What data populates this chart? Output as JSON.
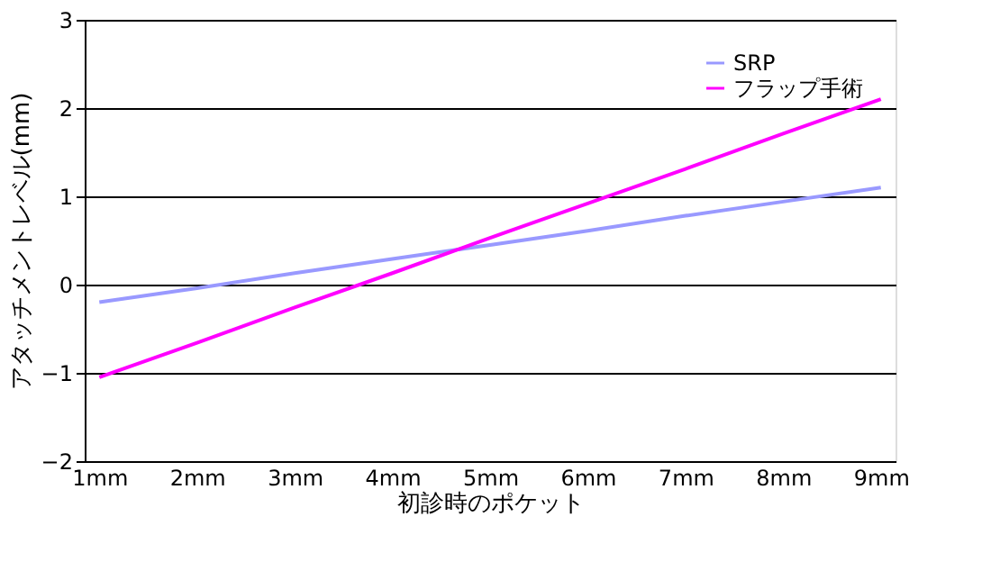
{
  "chart_data": {
    "type": "line",
    "xlabel": "初診時のポケット",
    "ylabel": "アタッチメントレベル(mm)",
    "categories": [
      "1mm",
      "2mm",
      "3mm",
      "4mm",
      "5mm",
      "6mm",
      "7mm",
      "8mm",
      "9mm"
    ],
    "series": [
      {
        "name": "SRP",
        "color": "#9999ff",
        "values": [
          -0.2,
          -0.04,
          0.13,
          0.29,
          0.45,
          0.61,
          0.78,
          0.94,
          1.1
        ]
      },
      {
        "name": "フラップ手術",
        "color": "#ff00ff",
        "values": [
          -1.05,
          -0.66,
          -0.26,
          0.13,
          0.53,
          0.92,
          1.31,
          1.71,
          2.1
        ]
      }
    ],
    "ylim": [
      -2,
      3
    ],
    "yticks": [
      -2,
      -1,
      0,
      1,
      2,
      3
    ],
    "grid": "y",
    "legend": "top right",
    "marker": "none",
    "line_style": "solid"
  }
}
